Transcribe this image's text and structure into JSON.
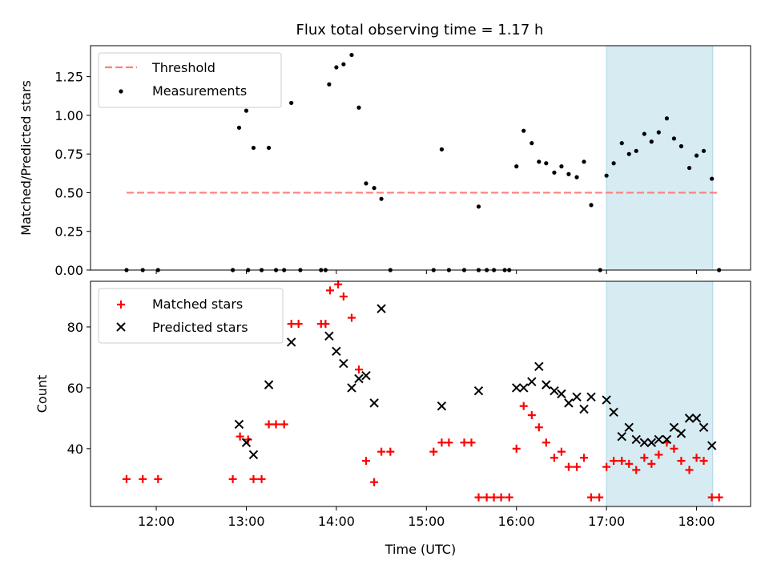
{
  "chart_data": {
    "title": "Flux total observing time = 1.17 h",
    "xlabel": "Time (UTC)",
    "x_unit": "hours UTC",
    "xlim": [
      11.27,
      18.6
    ],
    "x_ticks": [
      12,
      13,
      14,
      15,
      16,
      17,
      18
    ],
    "x_tick_labels": [
      "12:00",
      "13:00",
      "14:00",
      "15:00",
      "16:00",
      "17:00",
      "18:00"
    ],
    "shaded_span": {
      "x": [
        17.0,
        18.18
      ],
      "color": "#add8e6"
    },
    "panels": [
      {
        "type": "scatter",
        "ylabel": "Matched/Predicted stars",
        "ylim": [
          0,
          1.45
        ],
        "y_ticks": [
          0,
          0.25,
          0.5,
          0.75,
          1.0,
          1.25
        ],
        "y_tick_labels": [
          "0.00",
          "0.25",
          "0.50",
          "0.75",
          "1.00",
          "1.25"
        ],
        "legend": {
          "position": "upper-left",
          "entries": [
            {
              "label": "Threshold",
              "style": "dashed-line",
              "color": "#ff7f7f"
            },
            {
              "label": "Measurements",
              "style": "dot",
              "color": "#000000"
            }
          ]
        },
        "threshold": {
          "y": 0.5,
          "x": [
            11.67,
            18.25
          ],
          "color": "#ff7f7f"
        },
        "measurements": {
          "x": [
            11.67,
            11.85,
            12.02,
            12.85,
            13.02,
            13.17,
            13.33,
            13.42,
            13.6,
            13.83,
            13.88,
            14.6,
            15.08,
            15.25,
            15.42,
            15.58,
            15.67,
            15.75,
            15.87,
            15.92,
            16.93,
            18.25,
            12.92,
            13.0,
            13.08,
            13.25,
            13.5,
            13.92,
            14.0,
            14.08,
            14.17,
            14.25,
            14.33,
            14.42,
            14.5,
            15.17,
            15.58,
            16.0,
            16.08,
            16.17,
            16.25,
            16.33,
            16.42,
            16.5,
            16.58,
            16.67,
            16.75,
            16.83,
            17.0,
            17.08,
            17.17,
            17.25,
            17.33,
            17.42,
            17.5,
            17.58,
            17.67,
            17.75,
            17.83,
            17.92,
            18.0,
            18.08,
            18.17
          ],
          "y": [
            0,
            0,
            0,
            0,
            0,
            0,
            0,
            0,
            0,
            0,
            0,
            0,
            0,
            0,
            0,
            0,
            0,
            0,
            0,
            0,
            0,
            0,
            0.92,
            1.03,
            0.79,
            0.79,
            1.08,
            1.2,
            1.31,
            1.33,
            1.39,
            1.05,
            0.56,
            0.53,
            0.46,
            0.78,
            0.41,
            0.67,
            0.9,
            0.82,
            0.7,
            0.69,
            0.63,
            0.67,
            0.62,
            0.6,
            0.7,
            0.42,
            0.61,
            0.69,
            0.82,
            0.75,
            0.77,
            0.88,
            0.83,
            0.89,
            0.98,
            0.85,
            0.8,
            0.66,
            0.74,
            0.77,
            0.59
          ]
        }
      },
      {
        "type": "scatter",
        "ylabel": "Count",
        "ylim": [
          21,
          95
        ],
        "y_ticks": [
          40,
          60,
          80
        ],
        "y_tick_labels": [
          "40",
          "60",
          "80"
        ],
        "legend": {
          "position": "upper-left",
          "entries": [
            {
              "label": "Matched stars",
              "style": "plus",
              "color": "#ff0000"
            },
            {
              "label": "Predicted stars",
              "style": "x",
              "color": "#000000"
            }
          ]
        },
        "series": [
          {
            "name": "Matched stars",
            "marker": "plus",
            "color": "#ff0000",
            "x": [
              11.67,
              11.85,
              12.02,
              12.85,
              12.93,
              13.02,
              13.08,
              13.17,
              13.25,
              13.33,
              13.42,
              13.5,
              13.58,
              13.83,
              13.88,
              13.93,
              14.02,
              14.08,
              14.17,
              14.25,
              14.33,
              14.42,
              14.5,
              14.6,
              15.08,
              15.17,
              15.25,
              15.42,
              15.5,
              15.58,
              15.67,
              15.75,
              15.83,
              15.92,
              16.0,
              16.08,
              16.17,
              16.25,
              16.33,
              16.42,
              16.5,
              16.58,
              16.67,
              16.75,
              16.83,
              16.92,
              17.0,
              17.08,
              17.17,
              17.25,
              17.33,
              17.42,
              17.5,
              17.58,
              17.67,
              17.75,
              17.83,
              17.92,
              18.0,
              18.08,
              18.17,
              18.25
            ],
            "y": [
              30,
              30,
              30,
              30,
              44,
              43,
              30,
              30,
              48,
              48,
              48,
              81,
              81,
              81,
              81,
              92,
              94,
              90,
              83,
              66,
              36,
              29,
              39,
              39,
              39,
              42,
              42,
              42,
              42,
              24,
              24,
              24,
              24,
              24,
              40,
              54,
              51,
              47,
              42,
              37,
              39,
              34,
              34,
              37,
              24,
              24,
              34,
              36,
              36,
              35,
              33,
              37,
              35,
              38,
              42,
              40,
              36,
              33,
              37,
              36,
              24,
              24
            ]
          },
          {
            "name": "Predicted stars",
            "marker": "x",
            "color": "#000000",
            "x": [
              12.92,
              13.0,
              13.08,
              13.25,
              13.5,
              13.92,
              14.0,
              14.08,
              14.17,
              14.25,
              14.33,
              14.42,
              14.5,
              15.17,
              15.58,
              16.0,
              16.08,
              16.17,
              16.25,
              16.33,
              16.42,
              16.5,
              16.58,
              16.67,
              16.75,
              16.83,
              17.0,
              17.08,
              17.17,
              17.25,
              17.33,
              17.42,
              17.5,
              17.58,
              17.67,
              17.75,
              17.83,
              17.92,
              18.0,
              18.08,
              18.17
            ],
            "y": [
              48,
              42,
              38,
              61,
              75,
              77,
              72,
              68,
              60,
              63,
              64,
              55,
              86,
              54,
              59,
              60,
              60,
              62,
              67,
              61,
              59,
              58,
              55,
              57,
              53,
              57,
              56,
              52,
              44,
              47,
              43,
              42,
              42,
              43,
              43,
              47,
              45,
              50,
              50,
              47,
              41
            ]
          }
        ]
      }
    ]
  }
}
